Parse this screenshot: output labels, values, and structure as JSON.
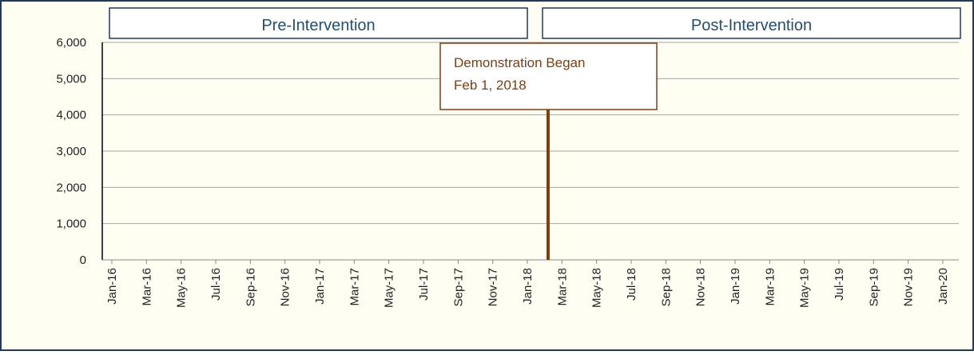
{
  "chart_data": {
    "type": "line",
    "categories": [
      "Jan-16",
      "Mar-16",
      "May-16",
      "Jul-16",
      "Sep-16",
      "Nov-16",
      "Jan-17",
      "Mar-17",
      "May-17",
      "Jul-17",
      "Sep-17",
      "Nov-17",
      "Jan-18",
      "Mar-18",
      "May-18",
      "Jul-18",
      "Sep-18",
      "Nov-18",
      "Jan-19",
      "Mar-19",
      "May-19",
      "Jul-19",
      "Sep-19",
      "Nov-19",
      "Jan-20"
    ],
    "ylim": [
      0,
      6000
    ],
    "yticks": [
      0,
      {
        "value": 1000,
        "label": "1,000"
      },
      {
        "value": 2000,
        "label": "2,000"
      },
      {
        "value": 3000,
        "label": "3,000"
      },
      {
        "value": 4000,
        "label": "4,000"
      },
      {
        "value": 5000,
        "label": "5,000"
      },
      {
        "value": 6000,
        "label": "6,000"
      }
    ],
    "grid": true,
    "regions": [
      "Pre-Intervention",
      "Post-Intervention"
    ],
    "marker_label": [
      "Demonstration Began",
      "Feb 1, 2018"
    ],
    "marker_color": "#843c0c",
    "region_color": "#1f4e79"
  }
}
